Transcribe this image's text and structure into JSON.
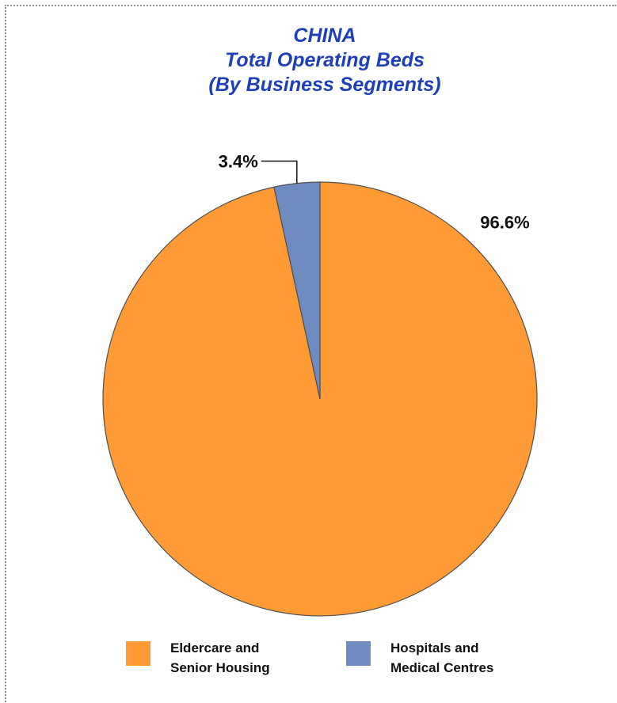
{
  "chart_data": {
    "type": "pie",
    "title_lines": [
      "CHINA",
      "Total Operating Beds",
      "(By Business Segments)"
    ],
    "title": "CHINA Total Operating Beds (By Business Segments)",
    "slices": [
      {
        "name": "Eldercare and Senior Housing",
        "value": 96.6,
        "label": "96.6%",
        "color": "#ff9a35"
      },
      {
        "name": "Hospitals and Medical Centres",
        "value": 3.4,
        "label": "3.4%",
        "color": "#6f8cc0"
      }
    ],
    "legend_placement": "bottom",
    "legend": [
      {
        "label": "Eldercare and\nSenior Housing",
        "color": "#ff9a35"
      },
      {
        "label": "Hospitals and\nMedical Centres",
        "color": "#6f8cc0"
      }
    ],
    "start_angle_deg": 0,
    "direction": "clockwise"
  },
  "colors": {
    "title": "#1f3fb8",
    "slice_border": "#505050",
    "frame_border": "#8c8c8c"
  }
}
